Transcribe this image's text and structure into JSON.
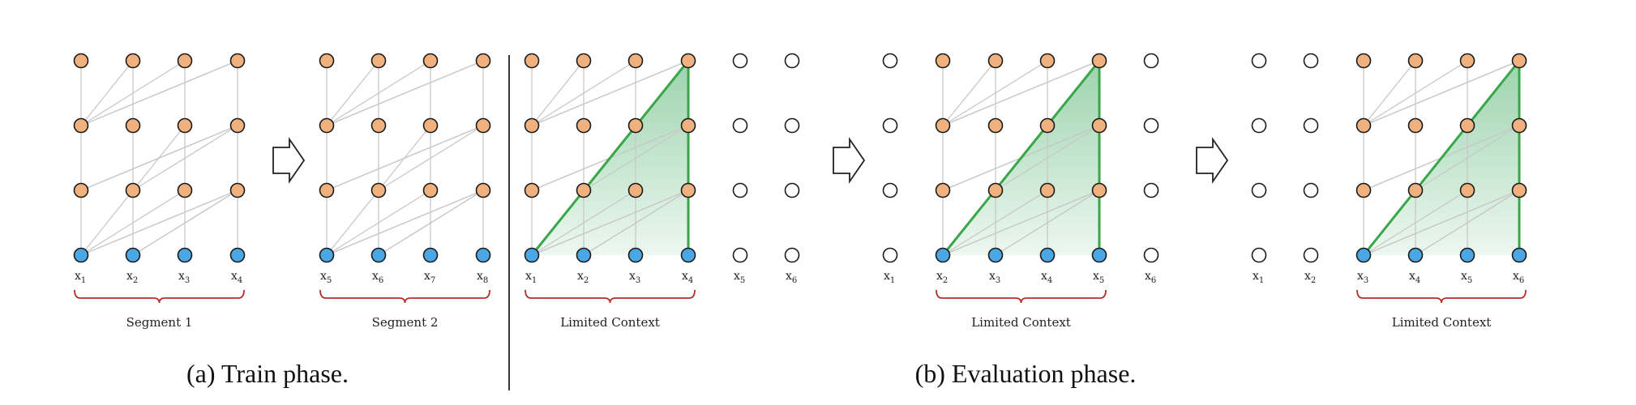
{
  "captions": {
    "train": "(a) Train phase.",
    "eval": "(b) Evaluation phase."
  },
  "panels": [
    {
      "id": "seg1",
      "tokens": [
        "1",
        "2",
        "3",
        "4"
      ],
      "label": "Segment 1",
      "ghost_left": [],
      "ghost_right": [],
      "context": false
    },
    {
      "id": "seg2",
      "tokens": [
        "5",
        "6",
        "7",
        "8"
      ],
      "label": "Segment 2",
      "ghost_left": [],
      "ghost_right": [],
      "context": false
    },
    {
      "id": "eval1",
      "tokens": [
        "1",
        "2",
        "3",
        "4"
      ],
      "label": "Limited Context",
      "ghost_left": [],
      "ghost_right": [
        "5",
        "6"
      ],
      "context": true
    },
    {
      "id": "eval2",
      "tokens": [
        "2",
        "3",
        "4",
        "5"
      ],
      "label": "Limited Context",
      "ghost_left": [
        "1"
      ],
      "ghost_right": [
        "6"
      ],
      "context": true
    },
    {
      "id": "eval3",
      "tokens": [
        "3",
        "4",
        "5",
        "6"
      ],
      "label": "Limited Context",
      "ghost_left": [
        "1",
        "2"
      ],
      "ghost_right": [],
      "context": true
    }
  ],
  "colors": {
    "hidden_node": "#efb17f",
    "input_node": "#4aa7e3",
    "context_border": "#3aa64a",
    "brace": "#b0302c"
  }
}
